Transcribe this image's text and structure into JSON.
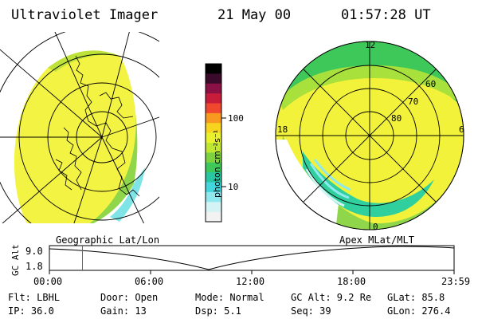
{
  "header": {
    "title": "Ultraviolet Imager",
    "date": "21 May 00",
    "time": "01:57:28 UT"
  },
  "colorbar": {
    "unit_label": "photon cm⁻²s⁻¹",
    "tick_100": "100",
    "tick_10": "10",
    "colors": [
      "#000000",
      "#3a0a2a",
      "#8b1044",
      "#c81d3a",
      "#f0482f",
      "#f79a1f",
      "#f7d51e",
      "#e9f02c",
      "#bfe630",
      "#7ed23d",
      "#3ec85a",
      "#28c6a2",
      "#44d6dd",
      "#8fe9ef",
      "#d3f3f4",
      "#f2f2f2"
    ]
  },
  "left_panel": {
    "projection_label": "Geographic Lat/Lon",
    "image_color": "#f2f23a"
  },
  "right_panel": {
    "projection_label": "Apex MLat/MLT",
    "mlt_12": "12",
    "mlt_18": "18",
    "mlt_6": "6",
    "mlt_0": "0",
    "mlat_60": "60",
    "mlat_70": "70",
    "mlat_80": "80"
  },
  "alt_plot": {
    "ylabel": "GC Alt",
    "y_top": "9.0",
    "y_bottom": "1.8",
    "x_ticks": [
      "00:00",
      "06:00",
      "12:00",
      "18:00",
      "23:59"
    ],
    "cursor_hours": 1.96,
    "cursor_color": "#e03030"
  },
  "footer": {
    "flt": "Flt: LBHL",
    "ip": "IP: 36.0",
    "door": "Door: Open",
    "gain": "Gain: 13",
    "mode": "Mode: Normal",
    "dsp": "Dsp:    5.1",
    "gcalt": "GC Alt: 9.2 Re",
    "seq": "Seq: 39",
    "glat": "GLat:  85.8",
    "glon": "GLon: 276.4"
  }
}
